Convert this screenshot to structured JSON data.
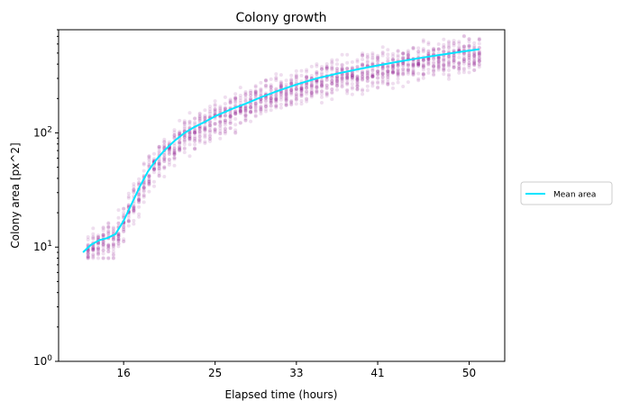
{
  "chart_data": {
    "type": "scatter",
    "title": "Colony growth",
    "xlabel": "Elapsed time (hours)",
    "ylabel": "Colony area [px^2]",
    "xlim": [
      9.6,
      53.5
    ],
    "ylim": [
      1,
      800
    ],
    "y_scale": "log",
    "x_ticks": [
      16,
      25,
      33,
      41,
      50
    ],
    "y_ticks": [
      {
        "value": 1,
        "label": "10^0"
      },
      {
        "value": 10,
        "label": "10^1"
      },
      {
        "value": 100,
        "label": "10^2"
      }
    ],
    "grid": false,
    "legend_position": "outside-right",
    "colors": {
      "scatter": "#800080",
      "mean_line": "#00e5ff"
    },
    "series": [
      {
        "name": "Mean area",
        "type": "line",
        "x": [
          12,
          12.8,
          13.6,
          14.4,
          15.2,
          16,
          16.8,
          17.6,
          18.4,
          19.2,
          20,
          21,
          22,
          23,
          24,
          25,
          26.5,
          28,
          29.5,
          31,
          33,
          35,
          37,
          39,
          41,
          43,
          45,
          47,
          49,
          51
        ],
        "values": [
          9,
          10.5,
          11.5,
          12,
          13,
          17,
          24,
          34,
          46,
          58,
          70,
          85,
          100,
          113,
          125,
          140,
          160,
          180,
          205,
          230,
          265,
          300,
          330,
          360,
          390,
          420,
          450,
          480,
          510,
          540
        ]
      },
      {
        "name": "",
        "type": "scatter",
        "x_range": [
          12.5,
          51
        ],
        "spread_factor": [
          0.55,
          1.55
        ],
        "min_value": 8
      }
    ]
  }
}
